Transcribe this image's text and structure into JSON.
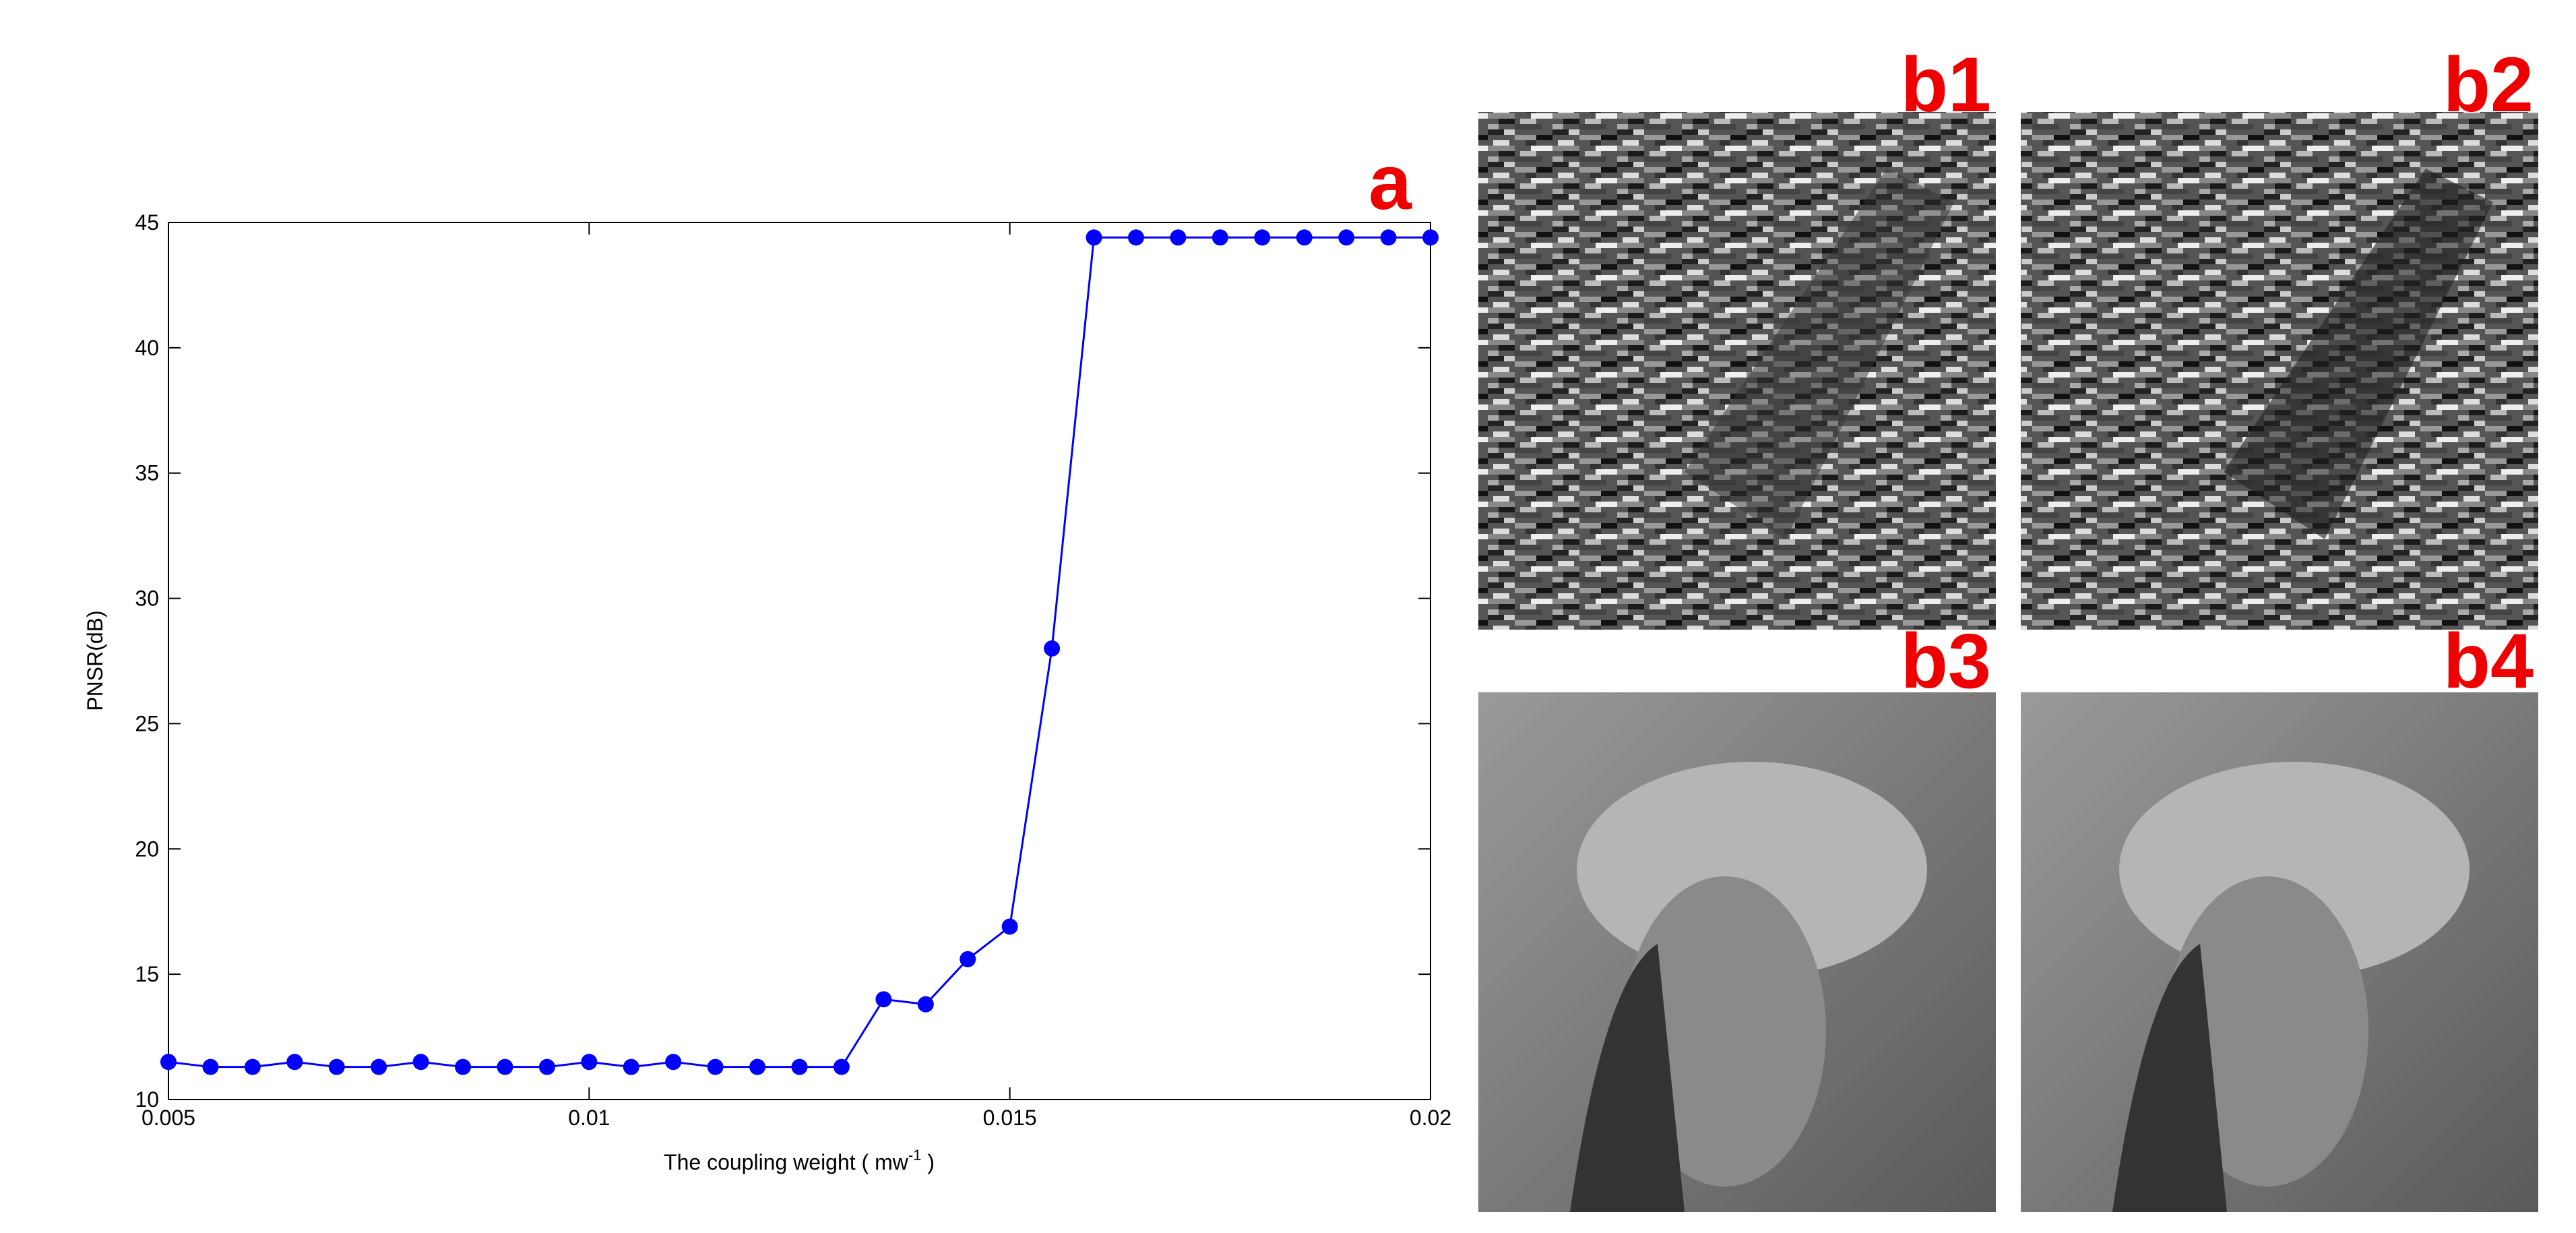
{
  "chart_data": {
    "type": "line",
    "panel_label": "a",
    "xlabel": "The coupling weight ( mw",
    "xlabel_sup": "-1",
    "xlabel_end": " )",
    "ylabel": "PNSR(dB)",
    "x": [
      0.005,
      0.0055,
      0.006,
      0.0065,
      0.007,
      0.0075,
      0.008,
      0.0085,
      0.009,
      0.0095,
      0.01,
      0.0105,
      0.011,
      0.0115,
      0.012,
      0.0125,
      0.013,
      0.0135,
      0.014,
      0.0145,
      0.015,
      0.0155,
      0.016,
      0.0165,
      0.017,
      0.0175,
      0.018,
      0.0185,
      0.019,
      0.0195,
      0.02
    ],
    "values": [
      11.5,
      11.3,
      11.3,
      11.5,
      11.3,
      11.3,
      11.5,
      11.3,
      11.3,
      11.3,
      11.5,
      11.3,
      11.5,
      11.3,
      11.3,
      11.3,
      11.3,
      14.0,
      13.8,
      15.6,
      16.9,
      28.0,
      44.4,
      44.4,
      44.4,
      44.4,
      44.4,
      44.4,
      44.4,
      44.4,
      44.4
    ],
    "color": "#0000ff",
    "xlim": [
      0.005,
      0.02
    ],
    "xticks": [
      0.005,
      0.01,
      0.015,
      0.02
    ],
    "ylim": [
      10,
      45
    ],
    "yticks": [
      10,
      15,
      20,
      25,
      30,
      35,
      40,
      45
    ]
  },
  "images": [
    {
      "label": "b1"
    },
    {
      "label": "b2"
    },
    {
      "label": "b3"
    },
    {
      "label": "b4"
    }
  ]
}
